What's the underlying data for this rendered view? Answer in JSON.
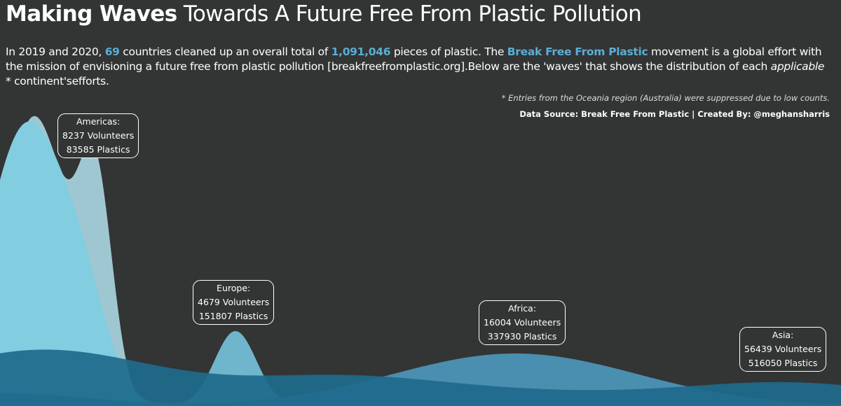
{
  "header": {
    "title_bold": "Making Waves",
    "title_rest": " Towards A Future Free From Plastic Pollution",
    "sub_1": "In 2019 and 2020, ",
    "countries": "69",
    "sub_2": " countries cleaned up an overall total of ",
    "total_plastic": "1,091,046",
    "sub_3": " pieces of plastic. The ",
    "movement": "Break Free From Plastic",
    "sub_4": " movement is a global effort with the mission of envisioning a future free from plastic pollution [breakfreefromplastic.org].Below are the 'waves' that shows the distribution of each ",
    "applicable": "applicable",
    "sub_5": " * continent'sefforts.",
    "note": "* Entries from the Oceania region (Australia) were suppressed due to low counts.",
    "source": "Data Source: Break Free From Plastic | Created By: @meghansharris"
  },
  "colors": {
    "background": "#333434",
    "highlight": "#5aaed4",
    "americas": "#82cde0",
    "americas_back": "#9fc7d2",
    "europe": "#6fb6cc",
    "africa": "#4a8eb0",
    "asia": "#1e6a8c"
  },
  "chart_data": {
    "type": "area",
    "x_axis_shown": false,
    "y_axis_shown": false,
    "series": [
      {
        "name": "Americas",
        "color": "#82cde0",
        "back_color": "#9fc7d2",
        "label_1": "Americas:",
        "label_2": "8237 Volunteers",
        "label_3": "83585 Plastics",
        "volunteers": 8237,
        "plastics": 83585
      },
      {
        "name": "Europe",
        "color": "#6fb6cc",
        "label_1": "Europe:",
        "label_2": "4679 Volunteers",
        "label_3": "151807 Plastics",
        "volunteers": 4679,
        "plastics": 151807
      },
      {
        "name": "Africa",
        "color": "#4a8eb0",
        "label_1": "Africa:",
        "label_2": "16004 Volunteers",
        "label_3": "337930 Plastics",
        "volunteers": 16004,
        "plastics": 337930
      },
      {
        "name": "Asia",
        "color": "#1e6a8c",
        "label_1": "Asia:",
        "label_2": "56439 Volunteers",
        "label_3": "516050 Plastics",
        "volunteers": 56439,
        "plastics": 516050
      }
    ]
  }
}
